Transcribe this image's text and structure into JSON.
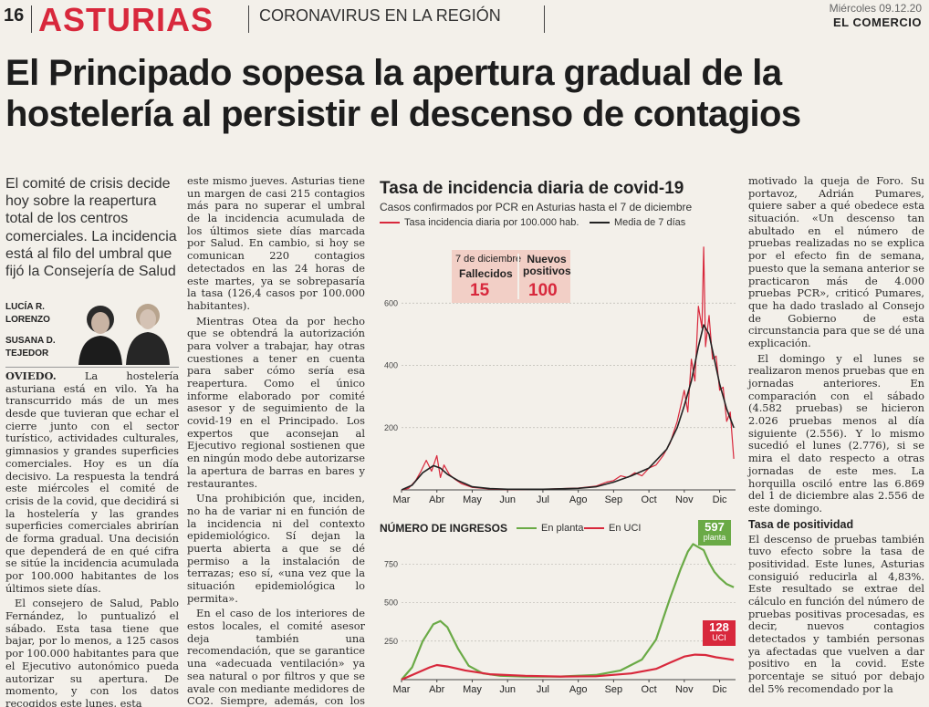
{
  "header": {
    "page_number": "16",
    "section": "ASTURIAS",
    "subsection": "CORONAVIRUS EN LA REGIÓN",
    "date": "Miércoles 09.12.20",
    "paper": "EL COMERCIO"
  },
  "headline": "El Principado sopesa la apertura gradual de la hostelería al persistir el descenso de contagios",
  "lead": "El comité de crisis decide hoy sobre la reapertura total de los centros comerciales. La incidencia está al filo del umbral que fijó la Consejería de Salud",
  "byline": {
    "author1": "LUCÍA R. LORENZO",
    "author2": "SUSANA D. TEJEDOR"
  },
  "col1": {
    "city": "OVIEDO.",
    "p1": "La hostelería asturiana está en vilo. Ya ha transcurrido más de un mes desde que tuvieran que echar el cierre junto con el sector turístico, actividades culturales, gimnasios y grandes superficies comerciales. Hoy es un día decisivo. La respuesta la tendrá este miércoles el comité de crisis de la covid, que decidirá si la hostelería y las grandes superficies comerciales abrirían de forma gradual. Una decisión que dependerá de en qué cifra se sitúe la incidencia acumulada por 100.000 habitantes de los últimos siete días.",
    "p2": "El consejero de Salud, Pablo Fernández, lo puntualizó el sábado. Esta tasa tiene que bajar, por lo menos, a 125 casos por 100.000 habitantes para que el Ejecutivo autonómico pueda autorizar su apertura. De momento, y con los datos recogidos este lunes, esta"
  },
  "col2": {
    "p1": "este mismo jueves. Asturias tiene un margen de casi 215 contagios más para no superar el umbral de la incidencia acumulada de los últimos siete días marcada por Salud. En cambio, si hoy se comunican 220 contagios detectados en las 24 horas de este martes, ya se sobrepasaría la tasa (126,4 casos por 100.000 habitantes).",
    "p2": "Mientras Otea da por hecho que se obtendrá la autorización para volver a trabajar, hay otras cuestiones a tener en cuenta para saber cómo sería esa reapertura. Como el único informe elaborado por comité asesor y de seguimiento de la covid-19 en el Principado. Los expertos que aconsejan al Ejecutivo regional sostienen que en ningún modo debe autorizarse la apertura de barras en bares y restaurantes.",
    "p3": "Una prohibición que, inciden, no ha de variar ni en función de la incidencia ni del contexto epidemiológico. Sí dejan la puerta abierta a que se dé permiso a la instalación de terrazas; eso sí, «una vez que la situación epidemiológica lo permita».",
    "p4": "En el caso de los interiores de estos locales, el comité asesor deja también una recomendación, que se garantice una «adecuada ventilación» ya sea natural o por filtros y que se avale con mediante medidores de CO2. Siempre, además, con los aforos restringidos"
  },
  "col4": {
    "p1": "motivado la queja de Foro. Su portavoz, Adrián Pumares, quiere saber a qué obedece esta situación. «Un descenso tan abultado en el número de pruebas realizadas no se explica por el efecto fin de semana, puesto que la semana anterior se practicaron más de 4.000 pruebas PCR», criticó Pumares, que ha dado traslado al Consejo de Gobierno de esta circunstancia para que se dé una explicación.",
    "p2": "El domingo y el lunes se realizaron menos pruebas que en jornadas anteriores. En comparación con el sábado (4.582 pruebas) se hicieron 2.026 pruebas menos al día siguiente (2.556). Y lo mismo sucedió el lunes (2.776), si se mira el dato respecto a otras jornadas de este mes. La horquilla osciló entre las 6.869 del 1 de diciembre alas 2.556 de este domingo.",
    "subhead": "Tasa de positividad",
    "p3": "El descenso de pruebas también tuvo efecto sobre la tasa de positividad. Este lunes, Asturias consiguió reducirla al 4,83%. Este resultado se extrae del cálculo en función del número de pruebas positivas procesadas, es decir, nuevos contagios detectados y también personas ya afectadas que vuelven a dar positivo en la covid. Este porcentaje se situó por debajo del 5% recomendado por la"
  },
  "chart_data": [
    {
      "type": "line",
      "title": "Tasa de incidencia diaria de covid-19",
      "subtitle": "Casos confirmados por PCR en Asturias hasta el 7 de diciembre",
      "x_tick_labels": [
        "Mar",
        "Abr",
        "May",
        "Jun",
        "Jul",
        "Ago",
        "Sep",
        "Oct",
        "Nov",
        "Dic"
      ],
      "x_unit": "months since March (0 = Mar)",
      "ylim": [
        0,
        800
      ],
      "y_ticks": [
        200,
        400,
        600
      ],
      "grid": true,
      "series": [
        {
          "name": "Tasa incidencia diaria por 100.000 hab.",
          "color": "#d8283c",
          "points": [
            [
              0,
              0
            ],
            [
              0.2,
              5
            ],
            [
              0.4,
              30
            ],
            [
              0.55,
              60
            ],
            [
              0.7,
              95
            ],
            [
              0.85,
              60
            ],
            [
              1.0,
              110
            ],
            [
              1.1,
              40
            ],
            [
              1.2,
              80
            ],
            [
              1.35,
              50
            ],
            [
              1.5,
              35
            ],
            [
              1.7,
              20
            ],
            [
              2.0,
              8
            ],
            [
              2.5,
              3
            ],
            [
              3,
              1
            ],
            [
              4,
              2
            ],
            [
              5,
              6
            ],
            [
              5.5,
              12
            ],
            [
              5.8,
              25
            ],
            [
              6.0,
              30
            ],
            [
              6.2,
              45
            ],
            [
              6.4,
              40
            ],
            [
              6.6,
              55
            ],
            [
              6.8,
              45
            ],
            [
              7.0,
              70
            ],
            [
              7.2,
              80
            ],
            [
              7.4,
              110
            ],
            [
              7.6,
              150
            ],
            [
              7.8,
              220
            ],
            [
              8.0,
              320
            ],
            [
              8.1,
              250
            ],
            [
              8.2,
              420
            ],
            [
              8.3,
              350
            ],
            [
              8.4,
              590
            ],
            [
              8.5,
              520
            ],
            [
              8.55,
              780
            ],
            [
              8.6,
              460
            ],
            [
              8.7,
              560
            ],
            [
              8.8,
              420
            ],
            [
              8.9,
              430
            ],
            [
              9.0,
              320
            ],
            [
              9.1,
              330
            ],
            [
              9.2,
              220
            ],
            [
              9.3,
              250
            ],
            [
              9.4,
              100
            ]
          ]
        },
        {
          "name": "Media de 7 días",
          "color": "#222222",
          "points": [
            [
              0,
              0
            ],
            [
              0.3,
              15
            ],
            [
              0.6,
              55
            ],
            [
              0.9,
              78
            ],
            [
              1.1,
              70
            ],
            [
              1.3,
              50
            ],
            [
              1.6,
              30
            ],
            [
              2.0,
              10
            ],
            [
              2.5,
              4
            ],
            [
              3,
              2
            ],
            [
              4,
              2
            ],
            [
              5,
              5
            ],
            [
              5.5,
              10
            ],
            [
              6.0,
              25
            ],
            [
              6.5,
              45
            ],
            [
              7.0,
              70
            ],
            [
              7.5,
              130
            ],
            [
              7.8,
              200
            ],
            [
              8.0,
              270
            ],
            [
              8.2,
              350
            ],
            [
              8.4,
              460
            ],
            [
              8.55,
              530
            ],
            [
              8.7,
              500
            ],
            [
              8.85,
              420
            ],
            [
              9.0,
              340
            ],
            [
              9.2,
              260
            ],
            [
              9.4,
              200
            ]
          ]
        }
      ],
      "annotation": {
        "date": "7 de diciembre",
        "deaths_label": "Fallecidos",
        "deaths_value": "15",
        "new_label": "Nuevos positivos",
        "new_value": "100"
      }
    },
    {
      "type": "line",
      "title": "NÚMERO DE INGRESOS",
      "x_tick_labels": [
        "Mar",
        "Abr",
        "May",
        "Jun",
        "Jul",
        "Ago",
        "Sep",
        "Oct",
        "Nov",
        "Dic"
      ],
      "x_unit": "months since March (0 = Mar)",
      "ylim": [
        0,
        900
      ],
      "y_ticks": [
        250,
        500,
        750
      ],
      "grid": true,
      "series": [
        {
          "name": "En planta",
          "color": "#6aaa46",
          "points": [
            [
              0,
              0
            ],
            [
              0.3,
              80
            ],
            [
              0.6,
              250
            ],
            [
              0.9,
              360
            ],
            [
              1.1,
              380
            ],
            [
              1.3,
              340
            ],
            [
              1.6,
              200
            ],
            [
              1.9,
              90
            ],
            [
              2.3,
              40
            ],
            [
              2.8,
              25
            ],
            [
              3.5,
              20
            ],
            [
              4.5,
              20
            ],
            [
              5.5,
              30
            ],
            [
              6.2,
              60
            ],
            [
              6.8,
              130
            ],
            [
              7.2,
              260
            ],
            [
              7.6,
              530
            ],
            [
              7.9,
              720
            ],
            [
              8.1,
              830
            ],
            [
              8.25,
              880
            ],
            [
              8.4,
              860
            ],
            [
              8.55,
              840
            ],
            [
              8.7,
              760
            ],
            [
              8.85,
              700
            ],
            [
              9.0,
              660
            ],
            [
              9.2,
              620
            ],
            [
              9.4,
              600
            ]
          ]
        },
        {
          "name": "En UCI",
          "color": "#d8283c",
          "points": [
            [
              0,
              0
            ],
            [
              0.4,
              40
            ],
            [
              0.8,
              80
            ],
            [
              1.0,
              95
            ],
            [
              1.3,
              85
            ],
            [
              1.8,
              60
            ],
            [
              2.5,
              35
            ],
            [
              3.5,
              25
            ],
            [
              4.5,
              20
            ],
            [
              5.5,
              22
            ],
            [
              6.5,
              40
            ],
            [
              7.2,
              70
            ],
            [
              7.6,
              110
            ],
            [
              8.0,
              150
            ],
            [
              8.3,
              162
            ],
            [
              8.6,
              160
            ],
            [
              8.9,
              145
            ],
            [
              9.2,
              135
            ],
            [
              9.4,
              128
            ]
          ]
        }
      ],
      "latest": {
        "planta_value": "597",
        "planta_label": "planta",
        "uci_value": "128",
        "uci_label": "UCI"
      }
    }
  ]
}
